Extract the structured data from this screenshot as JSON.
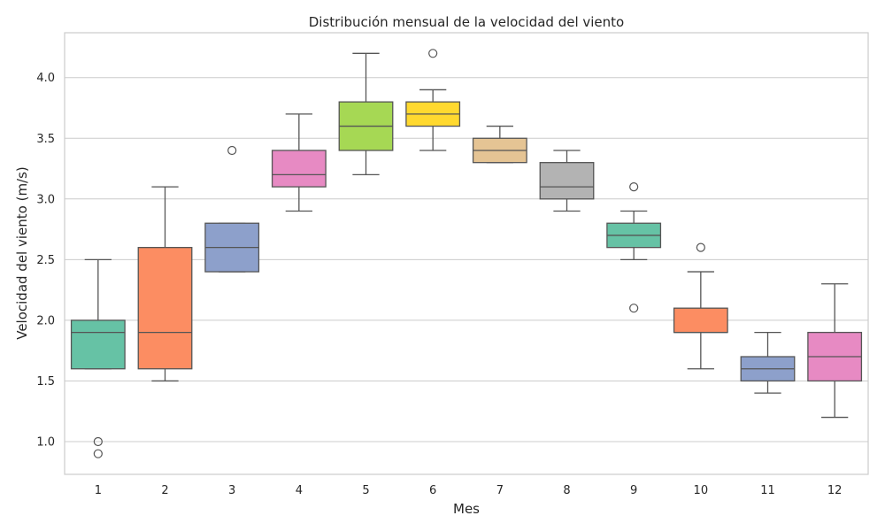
{
  "chart_data": {
    "type": "box",
    "title": "Distribución mensual de la velocidad del viento",
    "xlabel": "Mes",
    "ylabel": "Velocidad del viento (m/s)",
    "ylim": [
      0.73,
      4.37
    ],
    "yticks": [
      1.0,
      1.5,
      2.0,
      2.5,
      3.0,
      3.5,
      4.0
    ],
    "ytick_labels": [
      "1.0",
      "1.5",
      "2.0",
      "2.5",
      "3.0",
      "3.5",
      "4.0"
    ],
    "grid": "horizontal",
    "categories": [
      "1",
      "2",
      "3",
      "4",
      "5",
      "6",
      "7",
      "8",
      "9",
      "10",
      "11",
      "12"
    ],
    "boxes": [
      {
        "category": "1",
        "whisker_low": 1.6,
        "q1": 1.6,
        "median": 1.9,
        "q3": 2.0,
        "whisker_high": 2.5,
        "outliers": [
          1.0,
          0.9
        ],
        "color": "#66c2a5"
      },
      {
        "category": "2",
        "whisker_low": 1.5,
        "q1": 1.6,
        "median": 1.9,
        "q3": 2.6,
        "whisker_high": 3.1,
        "outliers": [],
        "color": "#fc8d62"
      },
      {
        "category": "3",
        "whisker_low": 2.4,
        "q1": 2.4,
        "median": 2.6,
        "q3": 2.8,
        "whisker_high": 2.8,
        "outliers": [
          3.4
        ],
        "color": "#8da0cb"
      },
      {
        "category": "4",
        "whisker_low": 2.9,
        "q1": 3.1,
        "median": 3.2,
        "q3": 3.4,
        "whisker_high": 3.7,
        "outliers": [],
        "color": "#e78ac3"
      },
      {
        "category": "5",
        "whisker_low": 3.2,
        "q1": 3.4,
        "median": 3.6,
        "q3": 3.8,
        "whisker_high": 4.2,
        "outliers": [],
        "color": "#a6d854"
      },
      {
        "category": "6",
        "whisker_low": 3.4,
        "q1": 3.6,
        "median": 3.7,
        "q3": 3.8,
        "whisker_high": 3.9,
        "outliers": [
          4.2
        ],
        "color": "#ffd92f"
      },
      {
        "category": "7",
        "whisker_low": 3.3,
        "q1": 3.3,
        "median": 3.4,
        "q3": 3.5,
        "whisker_high": 3.6,
        "outliers": [],
        "color": "#e5c494"
      },
      {
        "category": "8",
        "whisker_low": 2.9,
        "q1": 3.0,
        "median": 3.1,
        "q3": 3.3,
        "whisker_high": 3.4,
        "outliers": [],
        "color": "#b3b3b3"
      },
      {
        "category": "9",
        "whisker_low": 2.5,
        "q1": 2.6,
        "median": 2.7,
        "q3": 2.8,
        "whisker_high": 2.9,
        "outliers": [
          3.1,
          2.1
        ],
        "color": "#66c2a5"
      },
      {
        "category": "10",
        "whisker_low": 1.6,
        "q1": 1.9,
        "median": 1.9,
        "q3": 2.1,
        "whisker_high": 2.4,
        "outliers": [
          2.6
        ],
        "color": "#fc8d62"
      },
      {
        "category": "11",
        "whisker_low": 1.4,
        "q1": 1.5,
        "median": 1.6,
        "q3": 1.7,
        "whisker_high": 1.9,
        "outliers": [],
        "color": "#8da0cb"
      },
      {
        "category": "12",
        "whisker_low": 1.2,
        "q1": 1.5,
        "median": 1.7,
        "q3": 1.9,
        "whisker_high": 2.3,
        "outliers": [],
        "color": "#e78ac3"
      }
    ]
  }
}
